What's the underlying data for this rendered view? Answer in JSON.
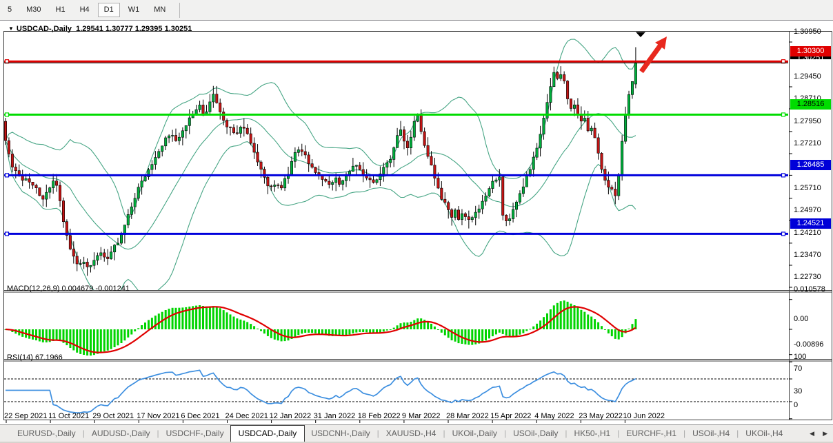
{
  "toolbar": {
    "timeframes": [
      "5",
      "M30",
      "H1",
      "H4",
      "D1",
      "W1",
      "MN"
    ],
    "active": "D1"
  },
  "title": {
    "symbol": "USDCAD-,Daily",
    "ohlc": "1.29541 1.30777 1.29395 1.30251"
  },
  "indicators": {
    "macd_label": "MACD(12,26,9) 0.004679 -0.001241",
    "rsi_label": "RSI(14) 67.1966"
  },
  "price_axis": {
    "ticks": [
      "1.30950",
      "1.29450",
      "1.28710",
      "1.27950",
      "1.27210",
      "1.26485",
      "1.25710",
      "1.24970",
      "1.24210",
      "1.23470",
      "1.22730"
    ],
    "badges": [
      {
        "text": "1.30251",
        "price": 1.30251,
        "bg": "#000000",
        "fg": "#FFFFFF",
        "clipped": true
      },
      {
        "text": "1.30300",
        "price": 1.303,
        "bg": "#E00000",
        "fg": "#FFFFFF",
        "clipped": false
      },
      {
        "text": "1.28516",
        "price": 1.28516,
        "bg": "#00DC00",
        "fg": "#000000",
        "clipped": false
      },
      {
        "text": "1.26485",
        "price": 1.26485,
        "bg": "#0000D8",
        "fg": "#FFFFFF",
        "clipped": false
      },
      {
        "text": "1.24521",
        "price": 1.24521,
        "bg": "#0000D8",
        "fg": "#FFFFFF",
        "clipped": false
      }
    ]
  },
  "macd_axis": [
    "0.010578",
    "0.00",
    "-0.00896"
  ],
  "rsi_axis": [
    "100",
    "70",
    "30",
    "0"
  ],
  "date_axis": [
    "22 Sep 2021",
    "11 Oct 2021",
    "29 Oct 2021",
    "17 Nov 2021",
    "6 Dec 2021",
    "24 Dec 2021",
    "12 Jan 2022",
    "31 Jan 2022",
    "18 Feb 2022",
    "9 Mar 2022",
    "28 Mar 2022",
    "15 Apr 2022",
    "4 May 2022",
    "23 May 2022",
    "10 Jun 2022"
  ],
  "tabs": {
    "items": [
      "EURUSD-,Daily",
      "AUDUSD-,Daily",
      "USDCHF-,Daily",
      "USDCAD-,Daily",
      "USDCNH-,Daily",
      "XAUUSD-,H4",
      "UKOil-,Daily",
      "USOil-,Daily",
      "HK50-,H1",
      "EURCHF-,H1",
      "USOil-,H4",
      "UKOil-,H4"
    ],
    "active_index": 3,
    "scroll_left": "◀",
    "scroll_right": "▶"
  },
  "chart_data": {
    "type": "candlestick",
    "symbol": "USDCAD-",
    "timeframe": "Daily",
    "ohlc_current": {
      "open": 1.29541,
      "high": 1.30777,
      "low": 1.29395,
      "close": 1.30251
    },
    "ylim": [
      1.2273,
      1.3095
    ],
    "hlines": [
      {
        "price": 1.303,
        "color": "#E00000",
        "width": 3
      },
      {
        "price": 1.28516,
        "color": "#00DC00",
        "width": 3
      },
      {
        "price": 1.26485,
        "color": "#0000DC",
        "width": 3
      },
      {
        "price": 1.24521,
        "color": "#0000DC",
        "width": 3
      },
      {
        "price": 1.30251,
        "color": "#000000",
        "width": 1,
        "current": true
      }
    ],
    "candles": {
      "count": 186,
      "start_x": 8,
      "spacing": 4.94,
      "body_width": 3.4
    },
    "close_keyframes": [
      [
        3,
        1.283
      ],
      [
        8,
        1.276
      ],
      [
        13,
        1.272
      ],
      [
        20,
        1.2665
      ],
      [
        30,
        1.264
      ],
      [
        42,
        1.2625
      ],
      [
        52,
        1.2605
      ],
      [
        62,
        1.2565
      ],
      [
        70,
        1.26
      ],
      [
        78,
        1.264
      ],
      [
        84,
        1.26
      ],
      [
        90,
        1.252
      ],
      [
        96,
        1.245
      ],
      [
        104,
        1.239
      ],
      [
        112,
        1.235
      ],
      [
        120,
        1.2365
      ],
      [
        128,
        1.234
      ],
      [
        136,
        1.236
      ],
      [
        146,
        1.2385
      ],
      [
        154,
        1.2365
      ],
      [
        162,
        1.2395
      ],
      [
        172,
        1.243
      ],
      [
        180,
        1.248
      ],
      [
        190,
        1.254
      ],
      [
        200,
        1.26
      ],
      [
        210,
        1.2645
      ],
      [
        220,
        1.268
      ],
      [
        230,
        1.2725
      ],
      [
        240,
        1.277
      ],
      [
        248,
        1.279
      ],
      [
        254,
        1.2755
      ],
      [
        262,
        1.278
      ],
      [
        272,
        1.2825
      ],
      [
        282,
        1.286
      ],
      [
        290,
        1.288
      ],
      [
        296,
        1.284
      ],
      [
        304,
        1.289
      ],
      [
        310,
        1.292
      ],
      [
        316,
        1.288
      ],
      [
        324,
        1.2835
      ],
      [
        332,
        1.2805
      ],
      [
        342,
        1.279
      ],
      [
        350,
        1.2815
      ],
      [
        358,
        1.2785
      ],
      [
        366,
        1.275
      ],
      [
        374,
        1.269
      ],
      [
        382,
        1.264
      ],
      [
        392,
        1.2605
      ],
      [
        400,
        1.2625
      ],
      [
        408,
        1.261
      ],
      [
        416,
        1.2645
      ],
      [
        426,
        1.271
      ],
      [
        434,
        1.2745
      ],
      [
        442,
        1.2715
      ],
      [
        450,
        1.268
      ],
      [
        458,
        1.2655
      ],
      [
        468,
        1.263
      ],
      [
        478,
        1.2615
      ],
      [
        486,
        1.264
      ],
      [
        494,
        1.262
      ],
      [
        502,
        1.265
      ],
      [
        510,
        1.2675
      ],
      [
        518,
        1.269
      ],
      [
        526,
        1.2655
      ],
      [
        534,
        1.2635
      ],
      [
        542,
        1.262
      ],
      [
        550,
        1.265
      ],
      [
        558,
        1.2675
      ],
      [
        566,
        1.2705
      ],
      [
        574,
        1.276
      ],
      [
        580,
        1.2805
      ],
      [
        586,
        1.276
      ],
      [
        592,
        1.273
      ],
      [
        598,
        1.28
      ],
      [
        604,
        1.286
      ],
      [
        610,
        1.28
      ],
      [
        616,
        1.2745
      ],
      [
        622,
        1.27
      ],
      [
        628,
        1.266
      ],
      [
        634,
        1.2615
      ],
      [
        640,
        1.2575
      ],
      [
        648,
        1.254
      ],
      [
        654,
        1.2505
      ],
      [
        660,
        1.253
      ],
      [
        666,
        1.25
      ],
      [
        672,
        1.252
      ],
      [
        678,
        1.249
      ],
      [
        686,
        1.2515
      ],
      [
        694,
        1.254
      ],
      [
        702,
        1.2565
      ],
      [
        710,
        1.2605
      ],
      [
        718,
        1.2635
      ],
      [
        724,
        1.2655
      ],
      [
        728,
        1.2525
      ],
      [
        734,
        1.249
      ],
      [
        742,
        1.252
      ],
      [
        750,
        1.256
      ],
      [
        758,
        1.2605
      ],
      [
        766,
        1.2655
      ],
      [
        774,
        1.2705
      ],
      [
        782,
        1.2765
      ],
      [
        788,
        1.283
      ],
      [
        794,
        1.29
      ],
      [
        800,
        1.2965
      ],
      [
        806,
        1.3005
      ],
      [
        810,
        1.2955
      ],
      [
        814,
        1.2995
      ],
      [
        818,
        1.296
      ],
      [
        822,
        1.292
      ],
      [
        826,
        1.2885
      ],
      [
        830,
        1.286
      ],
      [
        834,
        1.2885
      ],
      [
        838,
        1.285
      ],
      [
        842,
        1.283
      ],
      [
        846,
        1.2855
      ],
      [
        850,
        1.282
      ],
      [
        854,
        1.279
      ],
      [
        858,
        1.2815
      ],
      [
        862,
        1.278
      ],
      [
        866,
        1.2745
      ],
      [
        870,
        1.2695
      ],
      [
        874,
        1.265
      ],
      [
        878,
        1.2628
      ],
      [
        882,
        1.26
      ],
      [
        886,
        1.2618
      ],
      [
        890,
        1.255
      ],
      [
        894,
        1.261
      ],
      [
        898,
        1.266
      ],
      [
        902,
        1.276
      ],
      [
        906,
        1.283
      ],
      [
        910,
        1.29
      ],
      [
        914,
        1.294
      ],
      [
        918,
        1.2975
      ],
      [
        922,
        1.30251
      ]
    ],
    "bollinger": {
      "period": 20,
      "deviation": 2,
      "color": "#46A584"
    },
    "macd": {
      "params": [
        12,
        26,
        9
      ],
      "value": 0.004679,
      "signal": -0.001241,
      "range": [
        -0.00896,
        0.010578
      ],
      "hist_color": "#00D400",
      "signal_color": "#E00000"
    },
    "rsi": {
      "period": 14,
      "value": 67.1966,
      "levels": [
        70,
        30
      ],
      "range": [
        0,
        100
      ],
      "color": "#3D8FE0"
    },
    "colors": {
      "bull": "#00AE3C",
      "bear": "#C41414",
      "wick": "#000000"
    },
    "annotations": {
      "arrow": {
        "from": [
          930,
          89
        ],
        "to": [
          967,
          38
        ],
        "color": "#E8281E"
      },
      "top_marker": {
        "x": 929,
        "color": "#000000"
      }
    }
  }
}
